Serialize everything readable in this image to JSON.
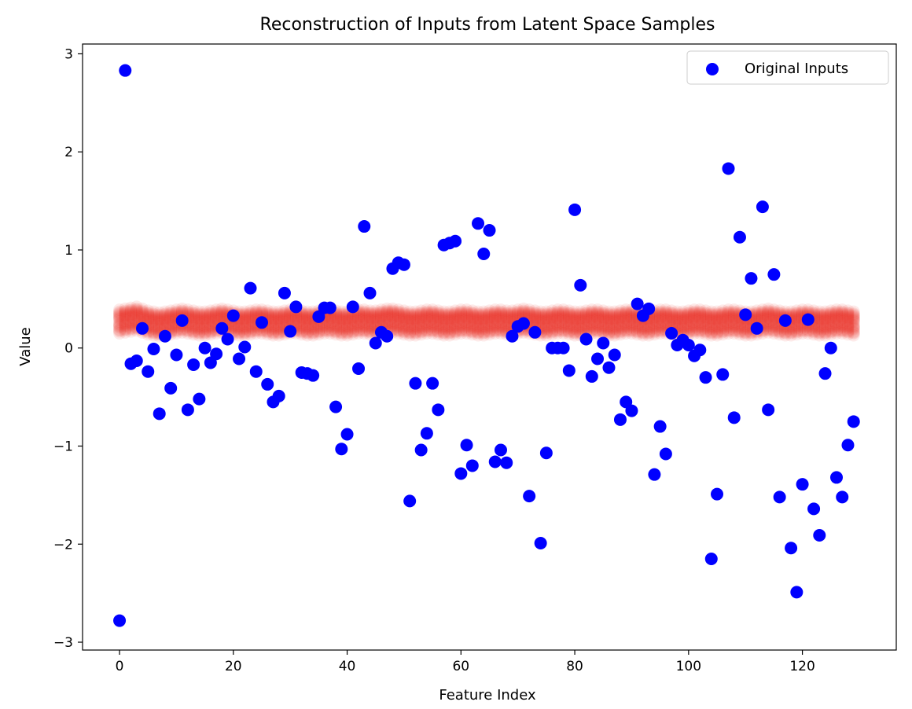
{
  "chart_data": {
    "type": "scatter",
    "title": "Reconstruction of Inputs from Latent Space Samples",
    "xlabel": "Feature Index",
    "ylabel": "Value",
    "xlim": [
      -6.5,
      136.5
    ],
    "ylim": [
      -3.08,
      3.1
    ],
    "xticks": [
      0,
      20,
      40,
      60,
      80,
      100,
      120
    ],
    "yticks": [
      -3,
      -2,
      -1,
      0,
      1,
      2,
      3
    ],
    "xtick_labels": [
      "0",
      "20",
      "40",
      "60",
      "80",
      "100",
      "120"
    ],
    "ytick_labels": [
      "−3",
      "−2",
      "−1",
      "0",
      "1",
      "2",
      "3"
    ],
    "legend": {
      "placement": "top-right",
      "entries": [
        "Original Inputs"
      ]
    },
    "series": [
      {
        "name": "Original Inputs",
        "color": "#0000ff",
        "x": [
          0,
          1,
          2,
          3,
          4,
          5,
          6,
          7,
          8,
          9,
          10,
          11,
          12,
          13,
          14,
          15,
          16,
          17,
          18,
          19,
          20,
          21,
          22,
          23,
          24,
          25,
          26,
          27,
          28,
          29,
          30,
          31,
          32,
          33,
          34,
          35,
          36,
          37,
          38,
          39,
          40,
          41,
          42,
          43,
          44,
          45,
          46,
          47,
          48,
          49,
          50,
          51,
          52,
          53,
          54,
          55,
          56,
          57,
          58,
          59,
          60,
          61,
          62,
          63,
          64,
          65,
          66,
          67,
          68,
          69,
          70,
          71,
          72,
          73,
          74,
          75,
          76,
          77,
          78,
          79,
          80,
          81,
          82,
          83,
          84,
          85,
          86,
          87,
          88,
          89,
          90,
          91,
          92,
          93,
          94,
          95,
          96,
          97,
          98,
          99,
          100,
          101,
          102,
          103,
          104,
          105,
          106,
          107,
          108,
          109,
          110,
          111,
          112,
          113,
          114,
          115,
          116,
          117,
          118,
          119,
          120,
          121,
          122,
          123,
          124,
          125,
          126,
          127,
          128,
          129
        ],
        "values": [
          -2.78,
          2.83,
          -0.16,
          -0.13,
          0.2,
          -0.24,
          -0.01,
          -0.67,
          0.12,
          -0.41,
          -0.07,
          0.28,
          -0.63,
          -0.17,
          -0.52,
          0.0,
          -0.15,
          -0.06,
          0.2,
          0.09,
          0.33,
          -0.11,
          0.01,
          0.61,
          -0.24,
          0.26,
          -0.37,
          -0.55,
          -0.49,
          0.56,
          0.17,
          0.42,
          -0.25,
          -0.26,
          -0.28,
          0.32,
          0.41,
          0.41,
          -0.6,
          -1.03,
          -0.88,
          0.42,
          -0.21,
          1.24,
          0.56,
          0.05,
          0.16,
          0.12,
          0.81,
          0.87,
          0.85,
          -1.56,
          -0.36,
          -1.04,
          -0.87,
          -0.36,
          -0.63,
          1.05,
          1.07,
          1.09,
          -1.28,
          -0.99,
          -1.2,
          1.27,
          0.96,
          1.2,
          -1.16,
          -1.04,
          -1.17,
          0.12,
          0.22,
          0.25,
          -1.51,
          0.16,
          -1.99,
          -1.07,
          0.0,
          0.0,
          0.0,
          -0.23,
          1.41,
          0.64,
          0.09,
          -0.29,
          -0.11,
          0.05,
          -0.2,
          -0.07,
          -0.73,
          -0.55,
          -0.64,
          0.45,
          0.33,
          0.4,
          -1.29,
          -0.8,
          -1.08,
          0.15,
          0.03,
          0.08,
          0.03,
          -0.08,
          -0.02,
          -0.3,
          -2.15,
          -1.49,
          -0.27,
          1.83,
          -0.71,
          1.13,
          0.34,
          0.71,
          0.2,
          1.44,
          -0.63,
          0.75,
          -1.52,
          0.28,
          -2.04,
          -2.49,
          -1.39,
          0.29,
          -1.64,
          -1.91,
          -0.26,
          0.0,
          -1.32,
          -1.52,
          -0.99,
          -0.75
        ]
      },
      {
        "name": "",
        "color": "#e8302a",
        "samples": 20,
        "x_range": [
          0,
          129
        ],
        "values": [
          0.27,
          0.28,
          0.29,
          0.3,
          0.28,
          0.26,
          0.25,
          0.24,
          0.25,
          0.26,
          0.27,
          0.28,
          0.27,
          0.26,
          0.25,
          0.25,
          0.26,
          0.27,
          0.28,
          0.27,
          0.26,
          0.25,
          0.25,
          0.26,
          0.27,
          0.27,
          0.26,
          0.25,
          0.25,
          0.26,
          0.27,
          0.27,
          0.26,
          0.25,
          0.25,
          0.26,
          0.27,
          0.27,
          0.26,
          0.25,
          0.25,
          0.26,
          0.27,
          0.27,
          0.26,
          0.26,
          0.27,
          0.28,
          0.28,
          0.27,
          0.26,
          0.25,
          0.25,
          0.26,
          0.27,
          0.27,
          0.26,
          0.25,
          0.25,
          0.26,
          0.27,
          0.27,
          0.26,
          0.25,
          0.25,
          0.26,
          0.27,
          0.27,
          0.26,
          0.26,
          0.27,
          0.28,
          0.27,
          0.26,
          0.25,
          0.25,
          0.26,
          0.27,
          0.27,
          0.26,
          0.25,
          0.25,
          0.26,
          0.27,
          0.27,
          0.26,
          0.25,
          0.25,
          0.26,
          0.27,
          0.27,
          0.26,
          0.25,
          0.25,
          0.26,
          0.27,
          0.27,
          0.26,
          0.25,
          0.25,
          0.26,
          0.27,
          0.27,
          0.26,
          0.25,
          0.25,
          0.26,
          0.27,
          0.27,
          0.26,
          0.25,
          0.25,
          0.26,
          0.27,
          0.28,
          0.27,
          0.26,
          0.25,
          0.25,
          0.26,
          0.27,
          0.27,
          0.26,
          0.25,
          0.25,
          0.26,
          0.27,
          0.27,
          0.26,
          0.25
        ]
      }
    ]
  }
}
